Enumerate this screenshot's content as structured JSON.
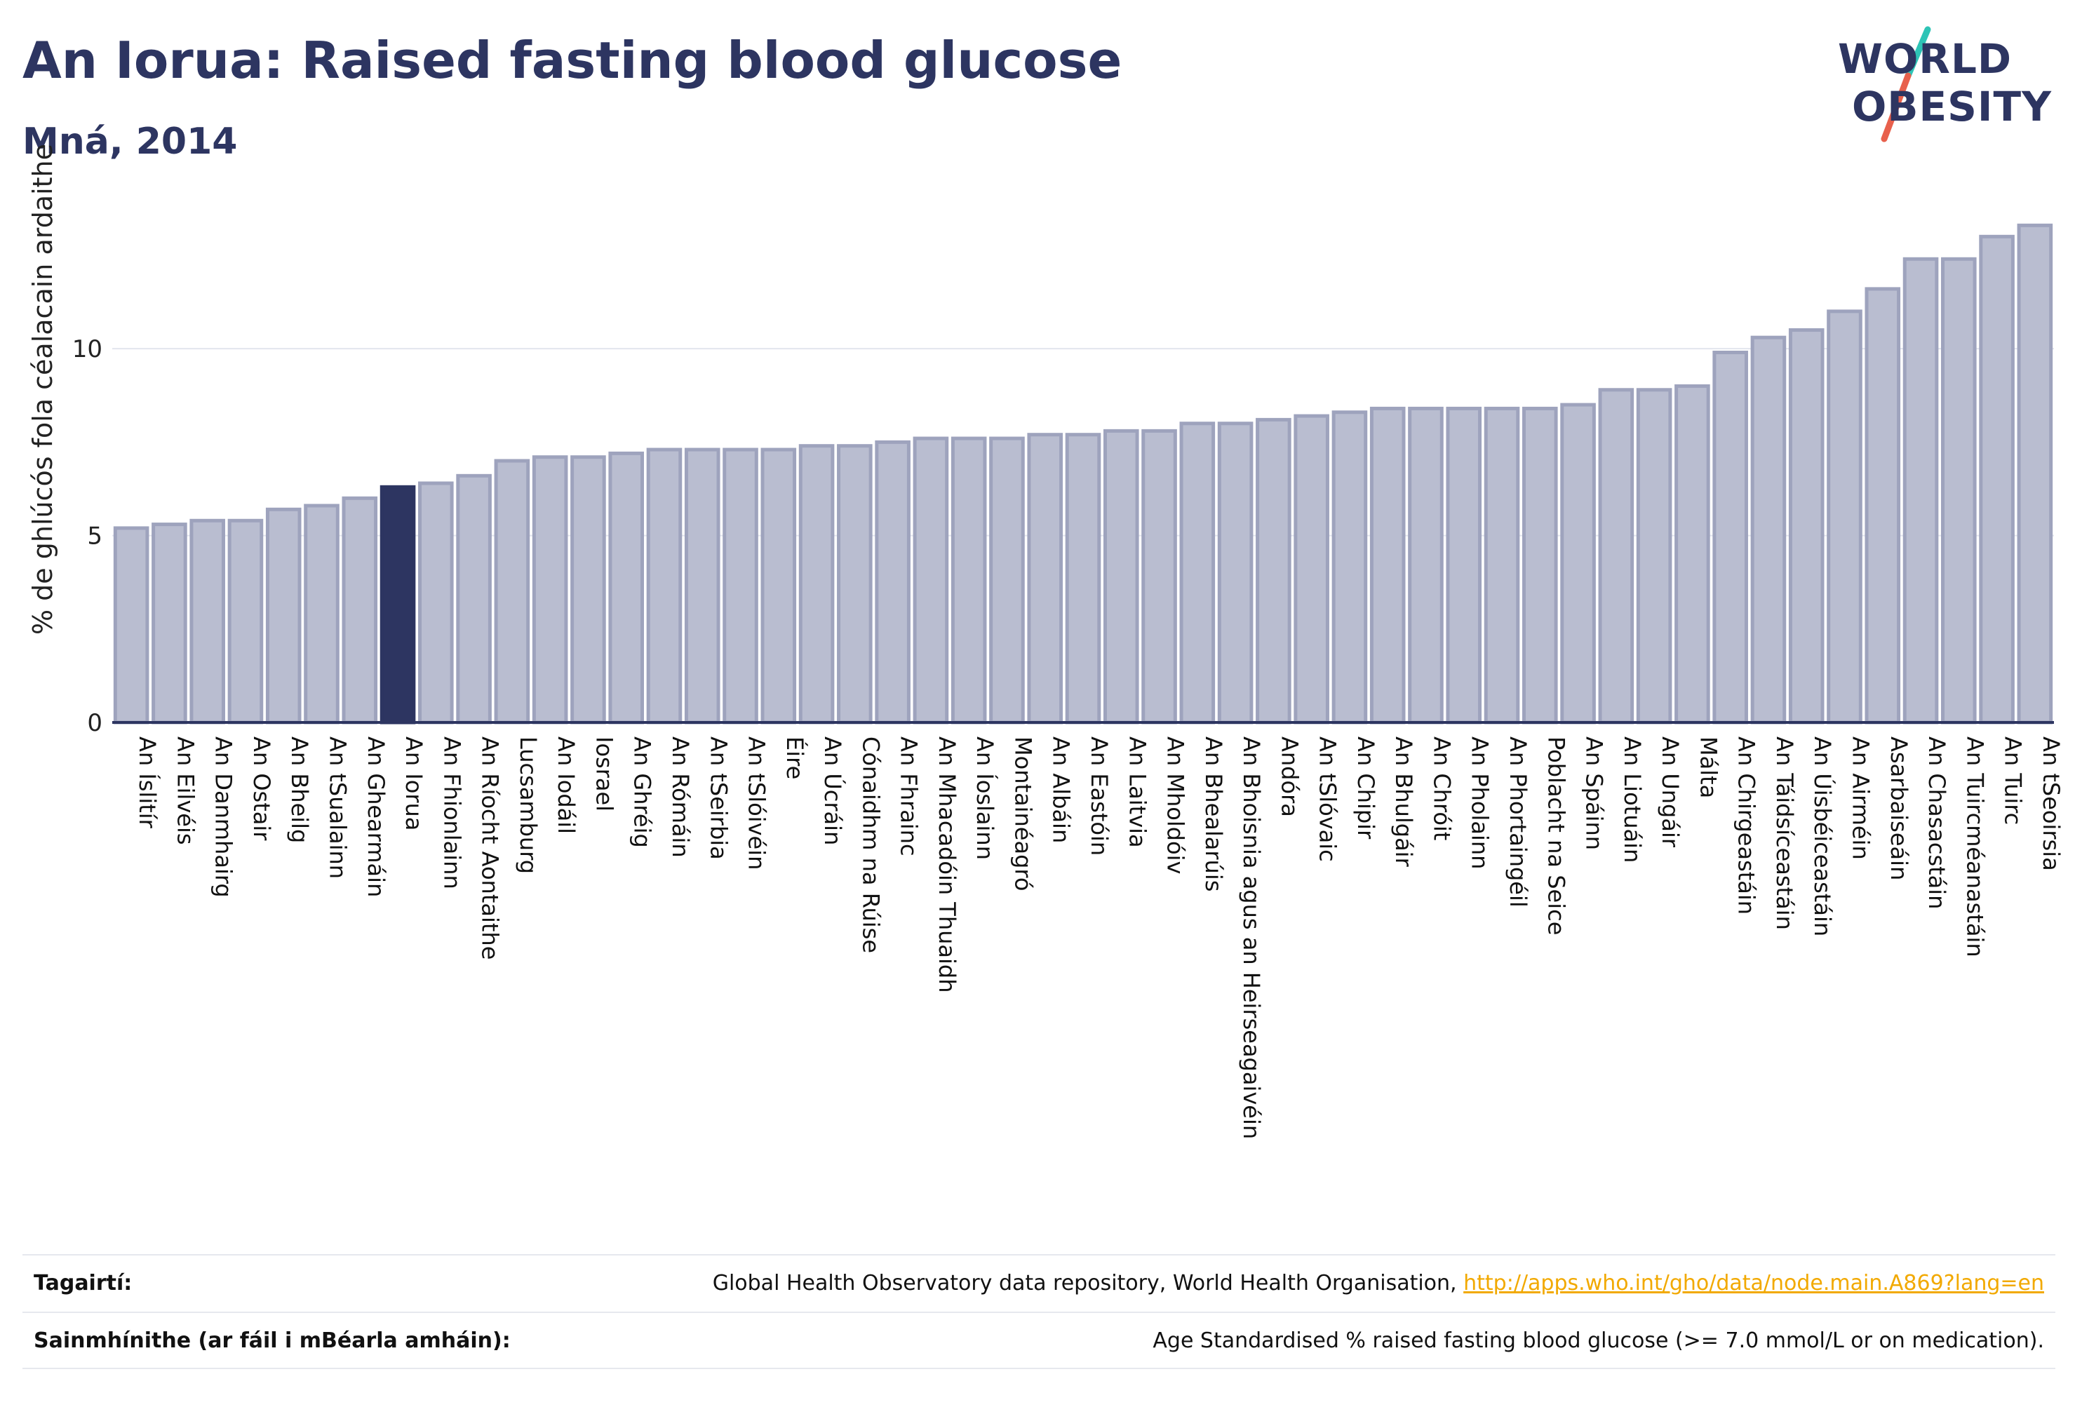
{
  "header": {
    "title": "An Iorua: Raised fasting blood glucose",
    "subtitle": "Mná, 2014"
  },
  "logo": {
    "line1": "WORLD",
    "line2": "OBESITY",
    "slash_colors": [
      "#2ec4b6",
      "#e8604c"
    ]
  },
  "chart_data": {
    "type": "bar",
    "ylabel": "% de ghlúcós fola céalacain ardaithe",
    "ylim": [
      0,
      13.7
    ],
    "yticks": [
      0,
      5,
      10
    ],
    "grid": true,
    "highlight_category": "An Iorua",
    "colors": {
      "bar": "#b9bdd0",
      "bar_border": "#9ea3bd",
      "highlight": "#2d3561",
      "axis": "#2d3561",
      "grid": "#e3e5ee"
    },
    "categories": [
      "An Íslitír",
      "An Eilvéis",
      "An Danmhairg",
      "An Ostair",
      "An Bheilg",
      "An tSualainn",
      "An Ghearmáin",
      "An Iorua",
      "An Fhionlainn",
      "An Ríocht Aontaithe",
      "Lucsamburg",
      "An Iodáil",
      "Iosrael",
      "An Ghréig",
      "An Rómáin",
      "An tSeirbia",
      "An tSlóivéin",
      "Éire",
      "An Úcráin",
      "Cónaidhm na Rúise",
      "An Fhrainc",
      "An Mhacadóin Thuaidh",
      "An Íoslainn",
      "Montainéagró",
      "An Albáin",
      "An Eastóin",
      "An Laitvia",
      "An Mholdóiv",
      "An Bhealarúis",
      "An Bhoisnia agus an Heirseagaivéin",
      "Andóra",
      "An tSlóvaic",
      "An Chipir",
      "An Bhulgáir",
      "An Chróit",
      "An Pholainn",
      "An Phortaingéil",
      "Poblacht na Seice",
      "An Spáinn",
      "An Liotuáin",
      "An Ungáir",
      "Málta",
      "An Chirgeastáin",
      "An Táidsíceastáin",
      "An Úisbéiceastáin",
      "An Airméin",
      "Asarbaiseáin",
      "An Chasacstáin",
      "An Tuircméanastáin",
      "An Tuirc",
      "An tSeoirsia"
    ],
    "values": [
      5.2,
      5.3,
      5.4,
      5.4,
      5.7,
      5.8,
      6.0,
      6.3,
      6.4,
      6.6,
      7.0,
      7.1,
      7.1,
      7.2,
      7.3,
      7.3,
      7.3,
      7.3,
      7.4,
      7.4,
      7.5,
      7.6,
      7.6,
      7.6,
      7.7,
      7.7,
      7.8,
      7.8,
      8.0,
      8.0,
      8.1,
      8.2,
      8.3,
      8.4,
      8.4,
      8.4,
      8.4,
      8.4,
      8.5,
      8.9,
      8.9,
      9.0,
      9.9,
      10.3,
      10.5,
      11.0,
      11.6,
      12.4,
      12.4,
      13.0,
      13.3
    ]
  },
  "footer": {
    "references_label": "Tagairtí:",
    "references_text": "Global Health Observatory data repository, World Health Organisation,",
    "references_link": "http://apps.who.int/gho/data/node.main.A869?lang=en",
    "definitions_label": "Sainmhínithe (ar fáil i mBéarla amháin):",
    "definitions_text": "Age Standardised % raised fasting blood glucose (>= 7.0 mmol/L or on medication)."
  }
}
